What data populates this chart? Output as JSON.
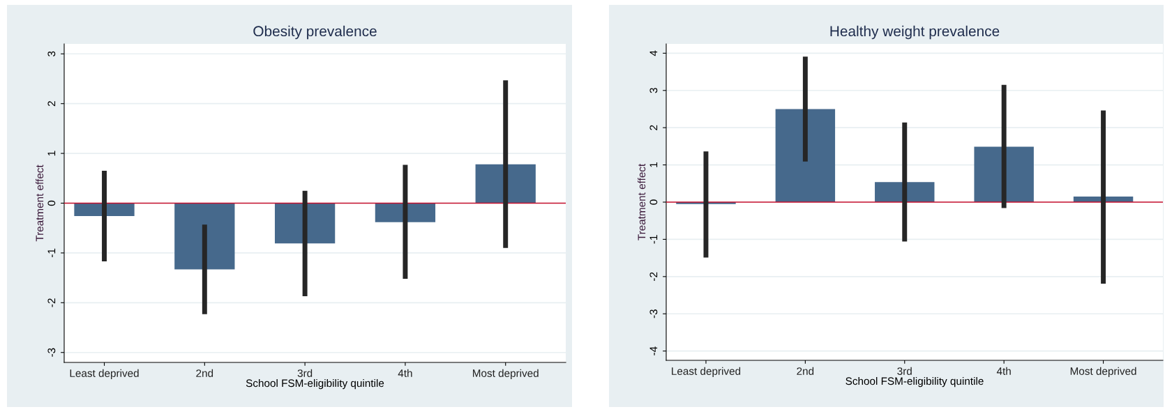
{
  "chart_data": [
    {
      "type": "bar",
      "title": "Obesity prevalence",
      "xlabel": "School FSM-eligibility quintile",
      "ylabel": "Treatment effect",
      "categories": [
        "Least deprived",
        "2nd",
        "3rd",
        "4th",
        "Most deprived"
      ],
      "values": [
        -0.26,
        -1.33,
        -0.81,
        -0.38,
        0.78
      ],
      "errors": [
        [
          -1.17,
          0.65
        ],
        [
          -2.23,
          -0.43
        ],
        [
          -1.87,
          0.25
        ],
        [
          -1.52,
          0.77
        ],
        [
          -0.9,
          2.47
        ]
      ],
      "color": "#46698c",
      "ylim": [
        -3.2,
        3.2
      ],
      "yticks": [
        {
          "value": -3,
          "label": "-3"
        },
        {
          "value": -2,
          "label": "-2"
        },
        {
          "value": -1,
          "label": "-1"
        },
        0,
        1,
        2,
        3
      ],
      "grid": "y",
      "ref_lines": [
        {
          "axis": "y",
          "value": 0,
          "color": "#c8102e"
        }
      ]
    },
    {
      "type": "bar",
      "title": "Healthy weight prevalence",
      "xlabel": "School FSM-eligibility quintile",
      "ylabel": "Treatment effect",
      "categories": [
        "Least deprived",
        "2nd",
        "3rd",
        "4th",
        "Most deprived"
      ],
      "values": [
        -0.05,
        2.5,
        0.54,
        1.49,
        0.15
      ],
      "errors": [
        [
          -1.49,
          1.36
        ],
        [
          1.09,
          3.91
        ],
        [
          -1.06,
          2.14
        ],
        [
          -0.16,
          3.15
        ],
        [
          -2.19,
          2.46
        ]
      ],
      "color": "#46698c",
      "ylim": [
        -4.25,
        4.25
      ],
      "yticks": [
        {
          "value": -4,
          "label": "-4"
        },
        {
          "value": -3,
          "label": "-3"
        },
        {
          "value": -2,
          "label": "-2"
        },
        {
          "value": -1,
          "label": "-1"
        },
        0,
        1,
        2,
        3,
        4
      ],
      "grid": "y",
      "ref_lines": [
        {
          "axis": "y",
          "value": 0,
          "color": "#c8102e"
        }
      ]
    }
  ]
}
